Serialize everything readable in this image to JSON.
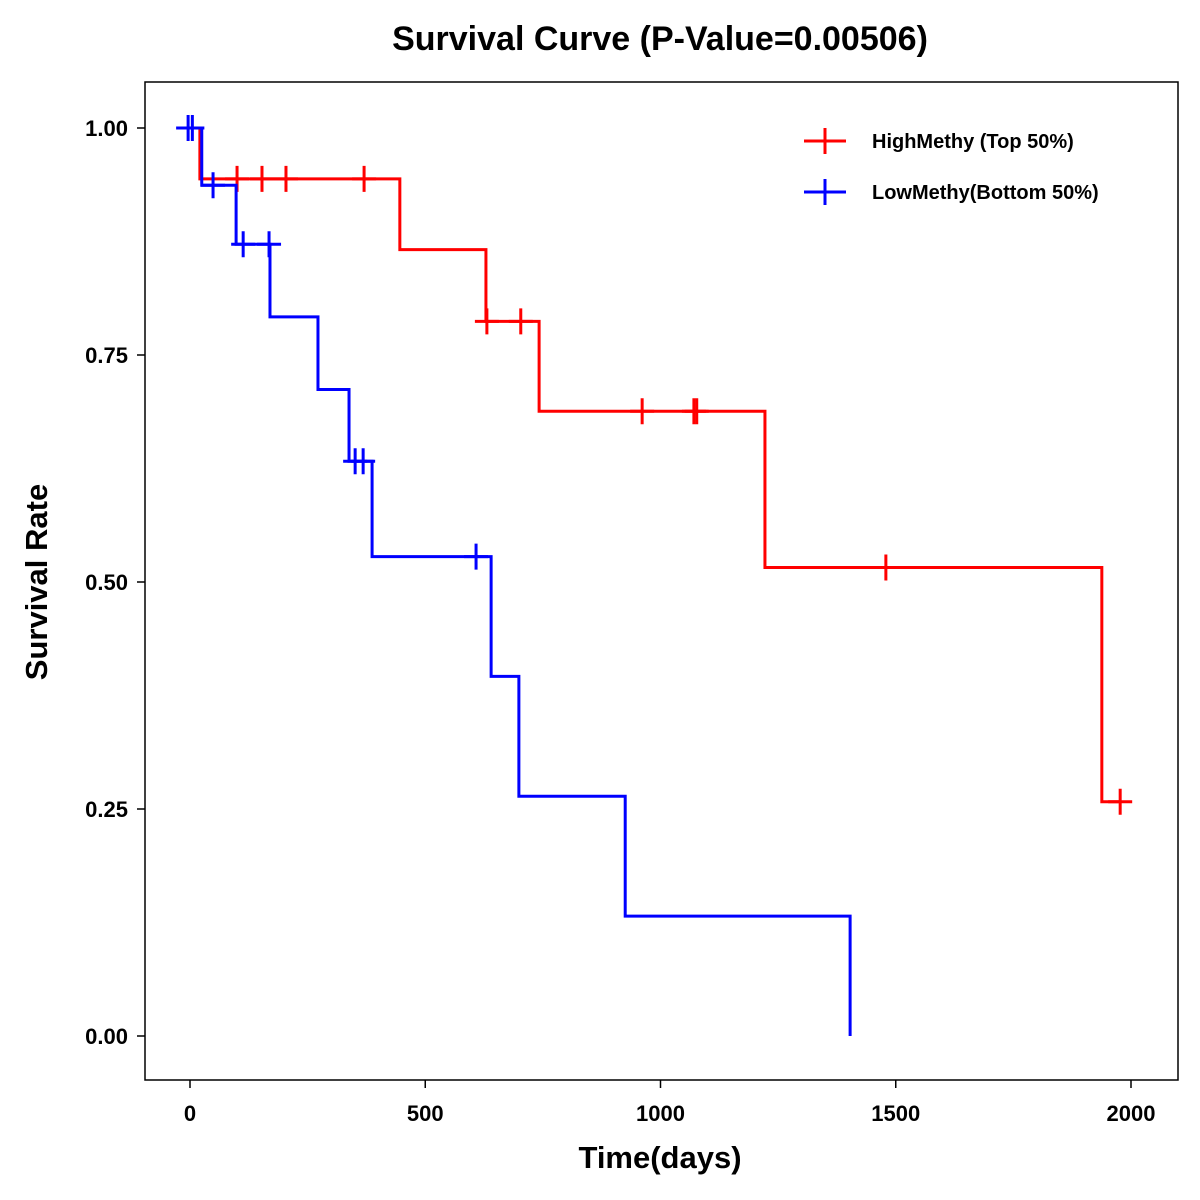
{
  "chart_data": {
    "type": "line",
    "subtype": "kaplan-meier step",
    "title": "Survival Curve (P-Value=0.00506)",
    "xlabel": "Time(days)",
    "ylabel": "Survival Rate",
    "xlim": [
      -95,
      2095
    ],
    "ylim": [
      -0.047,
      1.052
    ],
    "xticks": [
      0,
      500,
      1000,
      1500,
      2000
    ],
    "xtick_labels": [
      "0",
      "500",
      "1000",
      "1500",
      "2000"
    ],
    "yticks": [
      0,
      0.25,
      0.5,
      0.75,
      1.0
    ],
    "ytick_labels": [
      "0.00",
      "0.25",
      "0.50",
      "0.75",
      "1.00"
    ],
    "grid": false,
    "legend_position": "top-right",
    "series": [
      {
        "name": "HighMethy (Top 50%)",
        "color": "#ff0000",
        "steps": [
          [
            0,
            1.0
          ],
          [
            21,
            0.944
          ],
          [
            446,
            0.866
          ],
          [
            629,
            0.787
          ],
          [
            742,
            0.688
          ],
          [
            1222,
            0.516
          ],
          [
            1938,
            0.258
          ]
        ],
        "end_time": 1977,
        "censored": [
          [
            100,
            0.944
          ],
          [
            153,
            0.944
          ],
          [
            204,
            0.944
          ],
          [
            370,
            0.944
          ],
          [
            631,
            0.787
          ],
          [
            703,
            0.787
          ],
          [
            961,
            0.688
          ],
          [
            1071,
            0.688
          ],
          [
            1077,
            0.688
          ],
          [
            1479,
            0.516
          ],
          [
            1977,
            0.258
          ]
        ]
      },
      {
        "name": "LowMethy(Bottom 50%)",
        "color": "#0000ff",
        "steps": [
          [
            0,
            1.0
          ],
          [
            25,
            0.937
          ],
          [
            98,
            0.872
          ],
          [
            170,
            0.792
          ],
          [
            272,
            0.712
          ],
          [
            338,
            0.633
          ],
          [
            387,
            0.528
          ],
          [
            640,
            0.396
          ],
          [
            699,
            0.264
          ],
          [
            925,
            0.132
          ],
          [
            1403,
            0.0
          ]
        ],
        "end_time": 1403,
        "censored": [
          [
            -4,
            1.0
          ],
          [
            5,
            1.0
          ],
          [
            49,
            0.937
          ],
          [
            113,
            0.872
          ],
          [
            168,
            0.872
          ],
          [
            351,
            0.633
          ],
          [
            368,
            0.633
          ],
          [
            608,
            0.528
          ]
        ]
      }
    ]
  }
}
